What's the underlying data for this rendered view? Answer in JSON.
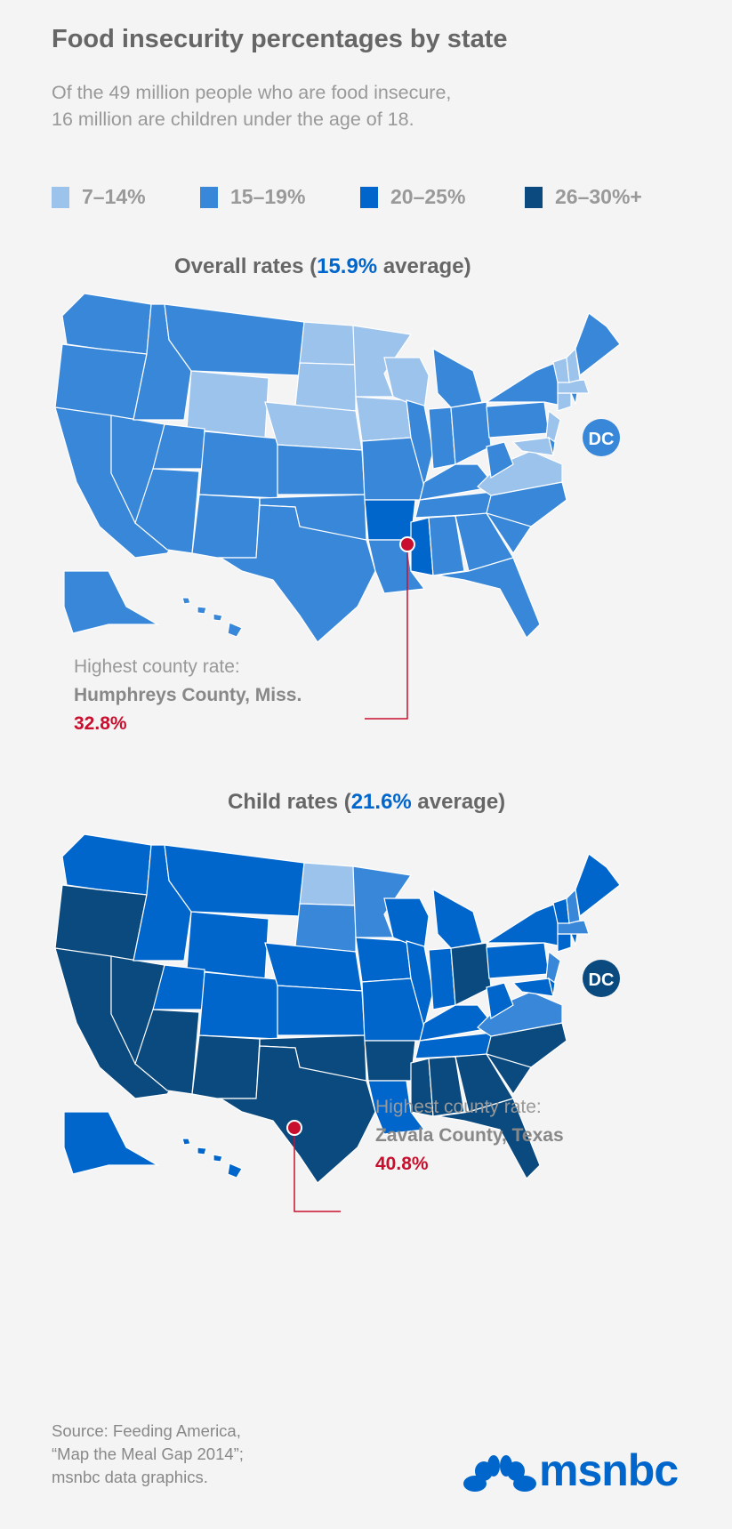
{
  "title": "Food insecurity percentages by state",
  "subtitle": [
    "Of the 49 million people who are food insecure,",
    "16 million are children under the age of 18."
  ],
  "legend": [
    {
      "label": "7–14%",
      "color": "#9cc3ec",
      "key": "low"
    },
    {
      "label": "15–19%",
      "color": "#3887d9",
      "key": "mid"
    },
    {
      "label": "20–25%",
      "color": "#0066cc",
      "key": "high"
    },
    {
      "label": "26–30%+",
      "color": "#0b4a7e",
      "key": "top"
    }
  ],
  "overall": {
    "title_pre": "Overall rates (",
    "avg": "15.9%",
    "title_post": " average)",
    "dc_label": "DC",
    "dc_category": "mid",
    "highest_label": "Highest county rate:",
    "highest_county": "Humphreys County, Miss.",
    "highest_value": "32.8%",
    "states": {
      "WA": "mid",
      "OR": "mid",
      "CA": "mid",
      "NV": "mid",
      "ID": "mid",
      "MT": "mid",
      "WY": "low",
      "UT": "mid",
      "CO": "mid",
      "AZ": "mid",
      "NM": "mid",
      "ND": "low",
      "SD": "low",
      "NE": "low",
      "KS": "mid",
      "OK": "mid",
      "TX": "mid",
      "MN": "low",
      "IA": "low",
      "MO": "mid",
      "AR": "high",
      "LA": "mid",
      "WI": "low",
      "IL": "mid",
      "MS": "high",
      "AL": "mid",
      "TN": "mid",
      "KY": "mid",
      "IN": "mid",
      "OH": "mid",
      "MI": "mid",
      "GA": "mid",
      "FL": "mid",
      "SC": "mid",
      "NC": "mid",
      "VA": "low",
      "WV": "mid",
      "PA": "mid",
      "NY": "mid",
      "NJ": "low",
      "MD": "low",
      "DE": "mid",
      "CT": "low",
      "RI": "mid",
      "MA": "low",
      "VT": "low",
      "NH": "low",
      "ME": "mid",
      "AK": "mid",
      "HI": "mid"
    }
  },
  "child": {
    "title_pre": "Child rates (",
    "avg": "21.6%",
    "title_post": " average)",
    "dc_label": "DC",
    "dc_category": "top",
    "highest_label": "Highest county rate:",
    "highest_county": "Zavala County, Texas",
    "highest_value": "40.8%",
    "states": {
      "WA": "high",
      "OR": "top",
      "CA": "top",
      "NV": "top",
      "ID": "high",
      "MT": "high",
      "WY": "high",
      "UT": "high",
      "CO": "high",
      "AZ": "top",
      "NM": "top",
      "ND": "low",
      "SD": "mid",
      "NE": "high",
      "KS": "high",
      "OK": "top",
      "TX": "top",
      "MN": "mid",
      "IA": "high",
      "MO": "high",
      "AR": "top",
      "LA": "high",
      "WI": "high",
      "IL": "high",
      "MS": "top",
      "AL": "top",
      "TN": "high",
      "KY": "high",
      "IN": "high",
      "OH": "top",
      "MI": "high",
      "GA": "top",
      "FL": "top",
      "SC": "top",
      "NC": "top",
      "VA": "mid",
      "WV": "high",
      "PA": "high",
      "NY": "high",
      "NJ": "mid",
      "MD": "high",
      "DE": "high",
      "CT": "high",
      "RI": "high",
      "MA": "mid",
      "VT": "high",
      "NH": "mid",
      "ME": "high",
      "AK": "high",
      "HI": "high"
    }
  },
  "source": [
    "Source: Feeding America,",
    "“Map the Meal Gap 2014”;",
    "msnbc data graphics."
  ],
  "logo_text": "msnbc",
  "marker_color": "#c8102e"
}
